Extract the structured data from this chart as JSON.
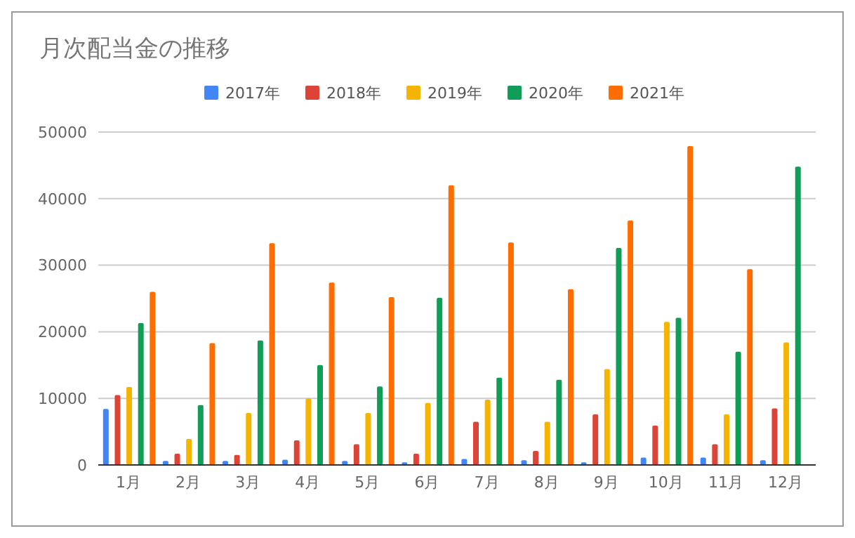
{
  "chart_data": {
    "type": "bar",
    "title": "月次配当金の推移",
    "categories": [
      "1月",
      "2月",
      "3月",
      "4月",
      "5月",
      "6月",
      "7月",
      "8月",
      "9月",
      "10月",
      "11月",
      "12月"
    ],
    "series": [
      {
        "name": "2017年",
        "color": "#4285f4",
        "values": [
          8400,
          600,
          600,
          800,
          600,
          400,
          900,
          700,
          400,
          1100,
          1100,
          700
        ]
      },
      {
        "name": "2018年",
        "color": "#db4437",
        "values": [
          10500,
          1700,
          1500,
          3700,
          3100,
          1700,
          6500,
          2100,
          7600,
          5900,
          3100,
          8500
        ]
      },
      {
        "name": "2019年",
        "color": "#f4b400",
        "values": [
          11700,
          3900,
          7800,
          10000,
          7800,
          9300,
          9800,
          6500,
          14400,
          21500,
          7600,
          18400
        ]
      },
      {
        "name": "2020年",
        "color": "#0f9d58",
        "values": [
          21300,
          9000,
          18700,
          15000,
          11800,
          25100,
          13100,
          12800,
          32600,
          22100,
          17000,
          44800
        ]
      },
      {
        "name": "2021年",
        "color": "#ff6d00",
        "values": [
          26000,
          18300,
          33300,
          27400,
          25200,
          42000,
          33400,
          26400,
          36700,
          47900,
          29400,
          null
        ]
      }
    ],
    "ylim": [
      0,
      50000
    ],
    "yticks": [
      0,
      10000,
      20000,
      30000,
      40000,
      50000
    ],
    "grid": "y",
    "legend": "top"
  }
}
